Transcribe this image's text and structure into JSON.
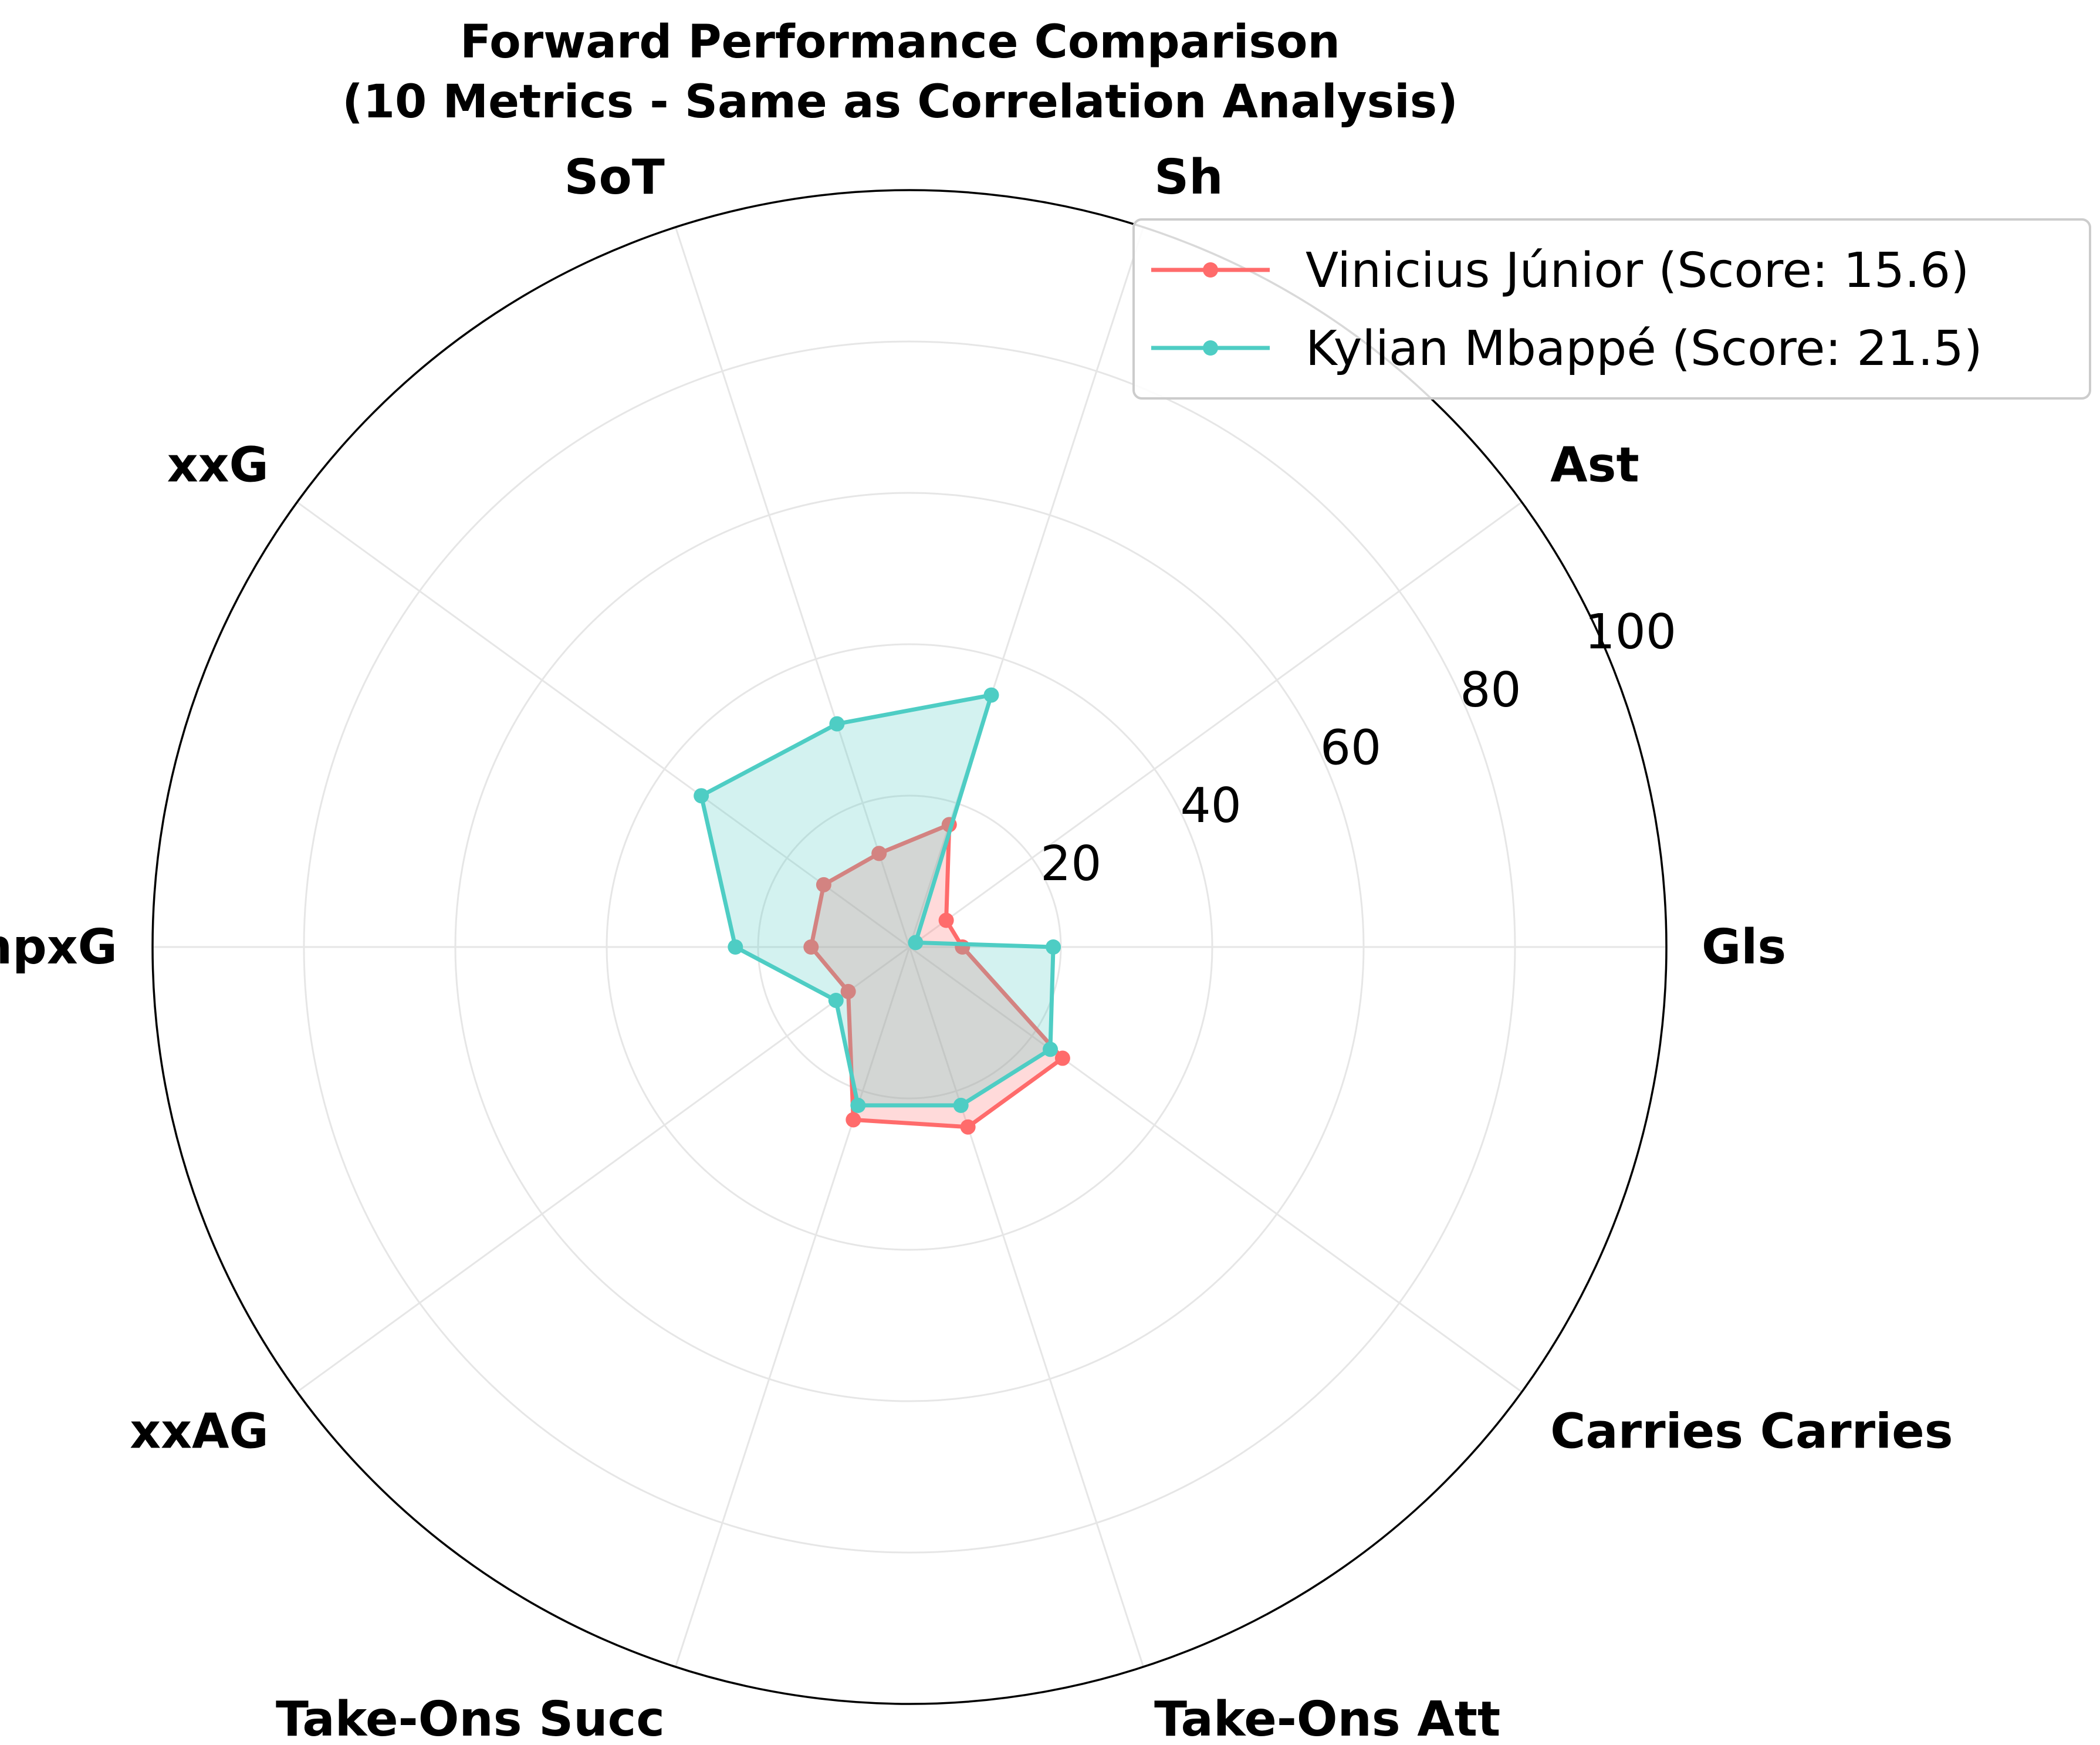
{
  "chart_data": {
    "type": "radar",
    "title_lines": [
      "Forward Performance Comparison",
      "(10 Metrics - Same as Correlation Analysis)"
    ],
    "axes": [
      "Gls",
      "Ast",
      "Sh",
      "SoT",
      "xxG",
      "xnpxG",
      "xxAG",
      "Take-Ons Succ",
      "Take-Ons Att",
      "Carries Carries"
    ],
    "radial_ticks": [
      20,
      40,
      60,
      80,
      100
    ],
    "rlim": [
      0,
      100
    ],
    "grid": true,
    "legend_position": "top-right",
    "series": [
      {
        "name": "Vinicius Júnior (Score: 15.6)",
        "color": "#ff6b6b",
        "values": [
          7,
          6,
          17,
          13,
          14,
          13,
          10,
          24,
          25,
          25
        ]
      },
      {
        "name": "Kylian Mbappé (Score: 21.5)",
        "color": "#4ecdc4",
        "values": [
          19,
          1,
          35,
          31,
          34,
          23,
          12,
          22,
          22,
          23
        ]
      }
    ]
  }
}
